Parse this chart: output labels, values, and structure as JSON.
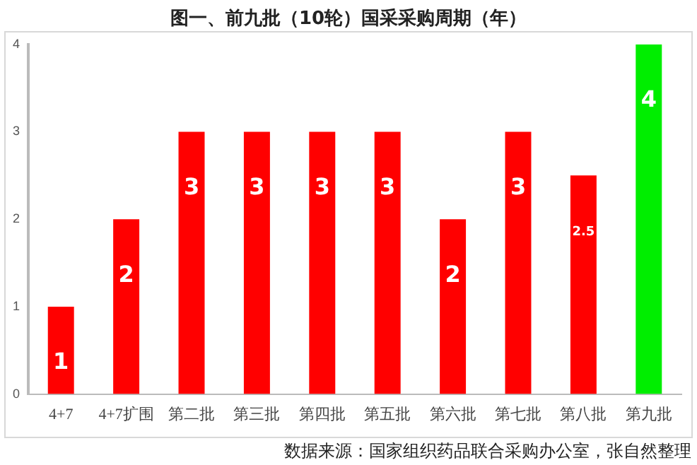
{
  "chart_data": {
    "type": "bar",
    "title": "图一、前九批（10轮）国采采购周期（年）",
    "categories": [
      "4+7",
      "4+7扩围",
      "第二批",
      "第三批",
      "第四批",
      "第五批",
      "第六批",
      "第七批",
      "第八批",
      "第九批"
    ],
    "values": [
      1,
      2,
      3,
      3,
      3,
      3,
      2,
      3,
      2.5,
      4
    ],
    "colors": [
      "#ff0000",
      "#ff0000",
      "#ff0000",
      "#ff0000",
      "#ff0000",
      "#ff0000",
      "#ff0000",
      "#ff0000",
      "#ff0000",
      "#00ee00"
    ],
    "ylim": [
      0,
      4
    ],
    "yticks": [
      0,
      1,
      2,
      3,
      4
    ],
    "grid": false,
    "legend": false,
    "data_labels": true,
    "annotations": [
      "数据来源：国家组织药品联合采购办公室，张自然整理"
    ]
  }
}
